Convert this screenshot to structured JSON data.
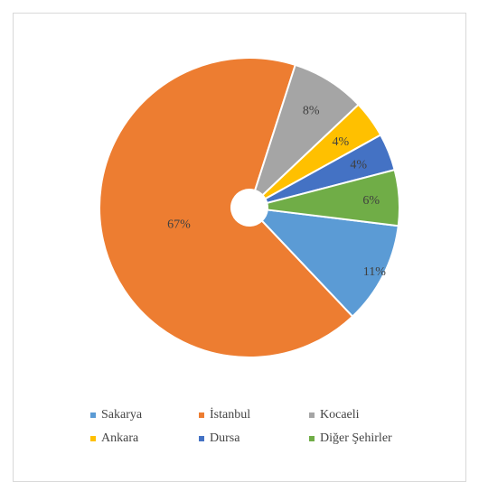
{
  "chart_data": {
    "type": "pie",
    "style": "donut",
    "title": "",
    "series": [
      {
        "name": "Sakarya",
        "value": 11,
        "label": "11%",
        "color": "#5b9bd5"
      },
      {
        "name": "İstanbul",
        "value": 67,
        "label": "67%",
        "color": "#ed7d31"
      },
      {
        "name": "Kocaeli",
        "value": 8,
        "label": "8%",
        "color": "#a5a5a5"
      },
      {
        "name": "Ankara",
        "value": 4,
        "label": "4%",
        "color": "#ffc000"
      },
      {
        "name": "Dursa",
        "value": 4,
        "label": "4%",
        "color": "#4472c4"
      },
      {
        "name": "Diğer Şehirler",
        "value": 6,
        "label": "6%",
        "color": "#70ad47"
      }
    ],
    "legend_position": "bottom"
  }
}
